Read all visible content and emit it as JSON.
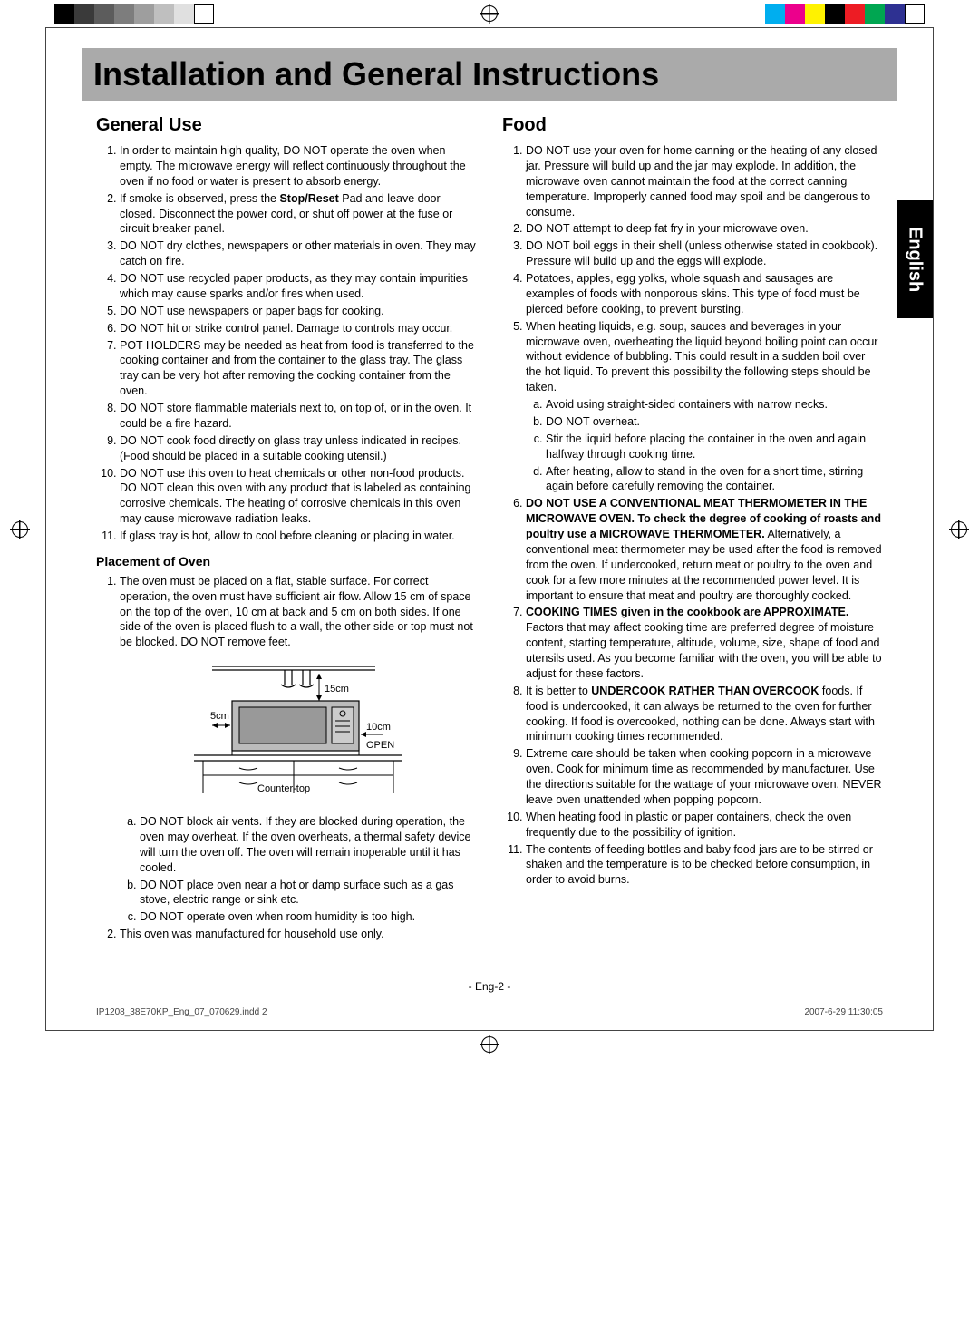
{
  "regColors": {
    "left": [
      "#000000",
      "#3a3a3a",
      "#5c5c5c",
      "#7d7d7d",
      "#9e9e9e",
      "#bfbfbf",
      "#e0e0e0",
      "#ffffff"
    ],
    "right": [
      "#00aeef",
      "#ec008c",
      "#fff200",
      "#000000",
      "#ed1c24",
      "#00a651",
      "#2e3192",
      "#ffffff"
    ]
  },
  "header": {
    "title": "Installation and General Instructions"
  },
  "sideTab": "English",
  "left": {
    "h2": "General Use",
    "items": [
      "In order to maintain high quality, DO NOT operate the oven when empty. The microwave energy will reflect continuously throughout the oven if no food or water is present to absorb energy.",
      "If smoke is observed, press the <b>Stop/Reset</b> Pad and leave door closed. Disconnect the power cord, or shut off power at the fuse or circuit breaker panel.",
      "DO NOT dry clothes, newspapers or other materials in oven. They may catch on fire.",
      "DO NOT use recycled paper products, as they may contain impurities which may cause sparks and/or fires when used.",
      "DO NOT use newspapers or paper bags for cooking.",
      "DO NOT hit or strike control panel. Damage to controls may occur.",
      "POT HOLDERS may be needed as heat from food is transferred to the cooking container and from the container to the glass tray. The glass tray can be very hot after removing the cooking container from the oven.",
      "DO NOT store flammable materials next to, on top of, or in the oven. It could be a fire hazard.",
      "DO NOT cook food directly on glass tray unless indicated in recipes. (Food should be placed in a suitable cooking utensil.)",
      "DO NOT use this oven to heat chemicals or other non-food products. DO NOT clean this oven with any product that is labeled as containing corrosive chemicals. The heating of corrosive chemicals in this oven may cause microwave radiation leaks.",
      "If glass tray is hot, allow to cool before cleaning or placing in water."
    ],
    "h3": "Placement of Oven",
    "placement1": "The oven must be placed on a flat, stable surface. For correct operation, the oven must have sufficient air flow. Allow 15 cm of space on the top of the oven, 10 cm at back and 5 cm on both sides. If one side of the oven is placed flush to a wall, the other side or top must not be blocked. DO NOT remove feet.",
    "diagram": {
      "top": "15cm",
      "side": "5cm",
      "back": "10cm",
      "open": "OPEN",
      "counter": "Counter-top"
    },
    "placementSub": [
      "DO NOT block air vents. If they are blocked during operation, the oven may overheat. If the oven overheats, a thermal safety device will turn the oven off. The oven will remain inoperable until it has cooled.",
      "DO NOT place oven near a hot or damp surface such as a gas stove, electric range or sink etc.",
      "DO NOT operate oven when room humidity is too high."
    ],
    "placement2": "This oven was manufactured for household use only."
  },
  "right": {
    "h2": "Food",
    "items": [
      "DO NOT use your oven for home canning or the heating of any closed jar. Pressure will build up and the jar may explode. In addition, the microwave oven cannot maintain the food at the correct canning temperature. Improperly canned food may spoil and be dangerous to consume.",
      "DO NOT attempt to deep fat fry in your microwave oven.",
      "DO NOT boil eggs in their shell (unless otherwise stated in cookbook). Pressure will build up and the eggs will explode.",
      "Potatoes, apples, egg yolks, whole squash and sausages are examples of foods with nonporous skins. This type of food must be pierced before cooking, to prevent bursting.",
      "When heating liquids, e.g. soup, sauces and beverages in your microwave oven, overheating the liquid beyond boiling point can occur without evidence of bubbling. This could result in a sudden boil over the hot liquid. To prevent this possibility the following steps should be taken."
    ],
    "items5sub": [
      "Avoid using straight-sided containers with narrow necks.",
      "DO NOT overheat.",
      "Stir the liquid before placing the container in the oven and again halfway through cooking time.",
      "After heating, allow to stand in the oven for a short time, stirring again before carefully removing the container."
    ],
    "items2": [
      "<b>DO NOT USE A CONVENTIONAL MEAT THERMOMETER IN THE MICROWAVE OVEN. To check the degree of cooking of roasts and poultry use a MICROWAVE THERMOMETER.</b> Alternatively, a conventional meat thermometer may be used after the food is removed from the oven. If undercooked, return meat or poultry to the oven and cook for a few more minutes at the recommended power level. It is important to ensure that meat and poultry are thoroughly cooked.",
      "<b>COOKING TIMES given in the cookbook are APPROXIMATE.</b> Factors that may affect cooking time are preferred degree of moisture content, starting temperature, altitude, volume, size, shape of food and utensils used. As you become familiar with the oven, you will be able to adjust for these factors.",
      "It is better to <b>UNDERCOOK RATHER THAN OVERCOOK</b> foods. If food is undercooked, it can always be returned to the oven for further cooking. If food is overcooked, nothing can be done. Always start with minimum cooking times recommended.",
      "Extreme care should be taken when cooking popcorn in a microwave oven. Cook for minimum time as recommended by manufacturer. Use the directions suitable for the wattage of your microwave oven. NEVER leave oven unattended when popping popcorn.",
      "When heating food in plastic or paper containers, check the oven frequently due to the possibility of ignition.",
      "The contents of feeding bottles and baby food jars are to be stirred or shaken and the temperature is to be checked before consumption, in order to avoid burns."
    ]
  },
  "pageNum": "- Eng-2 -",
  "footer": {
    "file": "IP1208_38E70KP_Eng_07_070629.indd   2",
    "date": "2007-6-29   11:30:05"
  }
}
